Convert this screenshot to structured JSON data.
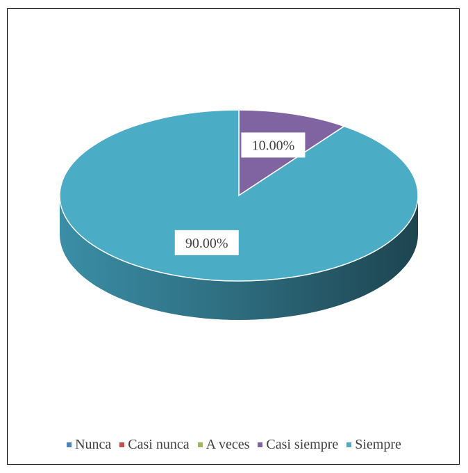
{
  "chart_data": {
    "type": "pie",
    "categories": [
      "Nunca",
      "Casi nunca",
      "A veces",
      "Casi siempre",
      "Siempre"
    ],
    "values": [
      0,
      0,
      0,
      10,
      90
    ],
    "data_labels": [
      "",
      "",
      "",
      "10.00%",
      "90.00%"
    ],
    "colors": [
      "#4f81bd",
      "#c0504d",
      "#9bbb59",
      "#8064a2",
      "#4bacc6"
    ],
    "style": "3d",
    "legend_position": "bottom",
    "title": ""
  }
}
